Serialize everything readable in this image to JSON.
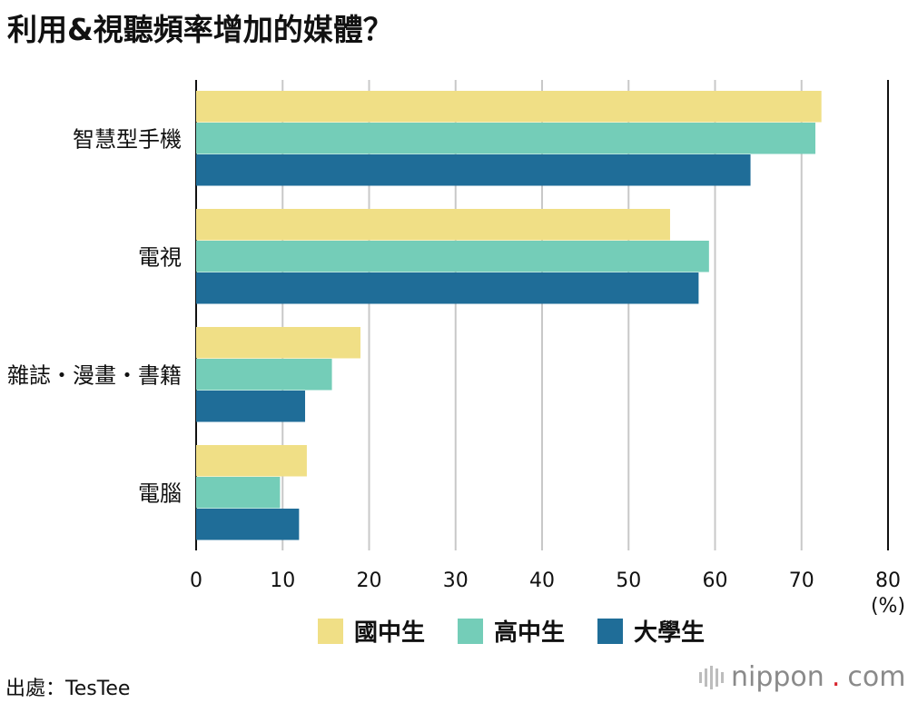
{
  "title": "利用&視聽頻率增加的媒體？",
  "source": "出處：TesTee",
  "brand": {
    "name": "nippon",
    "dot": ".",
    "tld": "com"
  },
  "colors": {
    "junior_high": "#f0df86",
    "senior_high": "#74cdb8",
    "university": "#1f6d98"
  },
  "chart_data": {
    "type": "bar",
    "orientation": "horizontal",
    "categories": [
      "智慧型手機",
      "電視",
      "雜誌・漫畫・書籍",
      "電腦"
    ],
    "series": [
      {
        "name": "國中生",
        "color": "#f0df86",
        "values": [
          72.3,
          54.8,
          19.0,
          12.8
        ]
      },
      {
        "name": "高中生",
        "color": "#74cdb8",
        "values": [
          71.6,
          59.3,
          15.7,
          9.7
        ]
      },
      {
        "name": "大學生",
        "color": "#1f6d98",
        "values": [
          64.1,
          58.1,
          12.6,
          11.9
        ]
      }
    ],
    "xlim": [
      0,
      80
    ],
    "xticks": [
      "0",
      "10",
      "20",
      "30",
      "40",
      "50",
      "60",
      "70",
      "80"
    ],
    "xunit": "(%)",
    "grid": true,
    "legend": "bottom"
  }
}
